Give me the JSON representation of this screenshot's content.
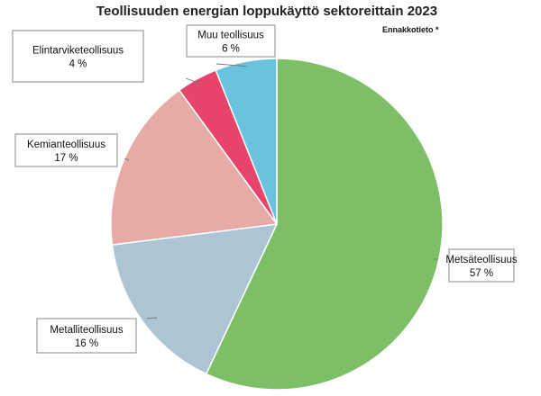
{
  "chart_data": {
    "type": "pie",
    "title": "Teollisuuden energian loppukäyttö sektoreittain 2023",
    "note": "Ennakkotieto *",
    "start_angle_deg": 0,
    "direction": "clockwise",
    "slices": [
      {
        "label": "Metsäteollisuus",
        "value": 57,
        "display": "57 %",
        "color": "#7dbf67"
      },
      {
        "label": "Metalliteollisuus",
        "value": 16,
        "display": "16 %",
        "color": "#adc4d3"
      },
      {
        "label": "Kemianteollisuus",
        "value": 17,
        "display": "17 %",
        "color": "#e6aba6"
      },
      {
        "label": "Elintarviketeollisuus",
        "value": 4,
        "display": "4 %",
        "color": "#e8436b"
      },
      {
        "label": "Muu teollisuus",
        "value": 6,
        "display": "6 %",
        "color": "#6ac3dd"
      }
    ]
  }
}
